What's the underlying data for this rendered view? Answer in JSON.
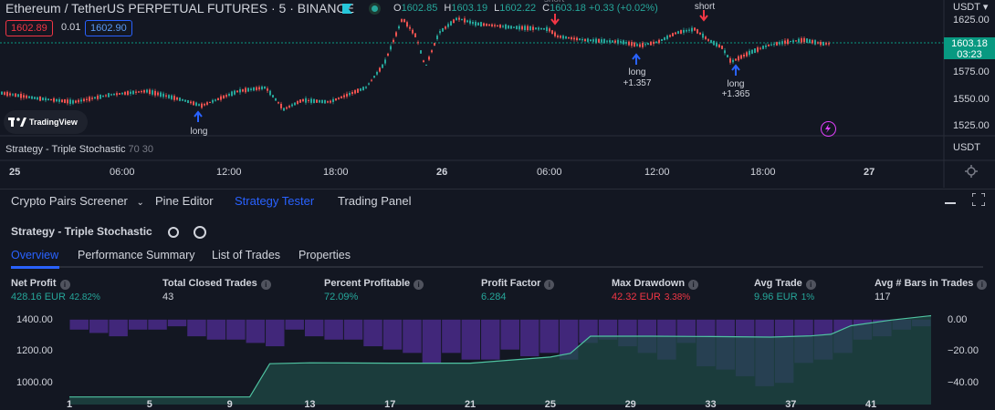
{
  "header": {
    "title": "Ethereum / TetherUS PERPETUAL FUTURES · 5 · BINANCE",
    "ohlc": [
      {
        "k": "O",
        "v": "1602.85"
      },
      {
        "k": "H",
        "v": "1603.19"
      },
      {
        "k": "L",
        "v": "1602.22"
      },
      {
        "k": "C",
        "v": "1603.18 +0.33 (+0.02%)"
      }
    ],
    "sell_price": "1602.89",
    "spread": "0.01",
    "buy_price": "1602.90",
    "currency": "USDT"
  },
  "price_axis": {
    "labels": [
      "1625.00",
      "1575.00",
      "1550.00",
      "1525.00"
    ],
    "current_price": "1603.18",
    "countdown": "03:23",
    "study_unit": "USDT"
  },
  "logo_text": "TradingView",
  "study": {
    "name": "Strategy - Triple Stochastic",
    "params": "70 30"
  },
  "time_axis": [
    {
      "label": "25",
      "bold": true
    },
    {
      "label": "06:00",
      "bold": false
    },
    {
      "label": "12:00",
      "bold": false
    },
    {
      "label": "18:00",
      "bold": false
    },
    {
      "label": "26",
      "bold": true
    },
    {
      "label": "06:00",
      "bold": false
    },
    {
      "label": "12:00",
      "bold": false
    },
    {
      "label": "18:00",
      "bold": false
    },
    {
      "label": "27",
      "bold": true
    }
  ],
  "signals": [
    {
      "label": "long",
      "pnl": ""
    },
    {
      "label": "short",
      "pnl": ""
    },
    {
      "label": "short",
      "pnl": ""
    },
    {
      "label": "long",
      "pnl": "+1.357"
    },
    {
      "label": "long",
      "pnl": "+1.365"
    }
  ],
  "panel_tabs": [
    "Crypto Pairs Screener",
    "Pine Editor",
    "Strategy Tester",
    "Trading Panel"
  ],
  "strategy": {
    "name": "Strategy - Triple Stochastic",
    "subtabs": [
      "Overview",
      "Performance Summary",
      "List of Trades",
      "Properties"
    ],
    "metrics": [
      {
        "title": "Net Profit",
        "value": "428.16 EUR",
        "pct": "42.82%",
        "color": "green"
      },
      {
        "title": "Total Closed Trades",
        "value": "43",
        "pct": "",
        "color": "white"
      },
      {
        "title": "Percent Profitable",
        "value": "72.09%",
        "pct": "",
        "color": "green"
      },
      {
        "title": "Profit Factor",
        "value": "6.284",
        "pct": "",
        "color": "green"
      },
      {
        "title": "Max Drawdown",
        "value": "42.32 EUR",
        "pct": "3.38%",
        "color": "red"
      },
      {
        "title": "Avg Trade",
        "value": "9.96 EUR",
        "pct": "1%",
        "color": "green"
      },
      {
        "title": "Avg # Bars in Trades",
        "value": "117",
        "pct": "",
        "color": "white"
      }
    ]
  },
  "chart_data": {
    "type": "area",
    "left_axis": {
      "ticks": [
        "1400.00",
        "1200.00",
        "1000.00"
      ],
      "ylim": [
        960,
        1440
      ]
    },
    "right_axis": {
      "ticks": [
        "0.00",
        "−20.00",
        "−40.00"
      ],
      "ylim": [
        -45,
        1
      ]
    },
    "x_ticks": [
      "1",
      "5",
      "9",
      "13",
      "17",
      "21",
      "25",
      "29",
      "33",
      "37",
      "41"
    ],
    "equity": [
      {
        "x": 1,
        "y": 1000
      },
      {
        "x": 5,
        "y": 1000
      },
      {
        "x": 10,
        "y": 1000
      },
      {
        "x": 11,
        "y": 1175
      },
      {
        "x": 13,
        "y": 1180
      },
      {
        "x": 17,
        "y": 1178
      },
      {
        "x": 21,
        "y": 1178
      },
      {
        "x": 25,
        "y": 1210
      },
      {
        "x": 26,
        "y": 1230
      },
      {
        "x": 27,
        "y": 1320
      },
      {
        "x": 30,
        "y": 1320
      },
      {
        "x": 33,
        "y": 1318
      },
      {
        "x": 36,
        "y": 1315
      },
      {
        "x": 38,
        "y": 1322
      },
      {
        "x": 39,
        "y": 1330
      },
      {
        "x": 40,
        "y": 1375
      },
      {
        "x": 42,
        "y": 1405
      },
      {
        "x": 44,
        "y": 1428
      }
    ],
    "drawdown": [
      -6,
      -8,
      -10,
      -6,
      -6,
      -4,
      -10,
      -12,
      -12,
      -14,
      -16,
      -6,
      -10,
      -12,
      -12,
      -16,
      -18,
      -20,
      -26,
      -20,
      -24,
      -24,
      -18,
      -22,
      -20,
      -24,
      -14,
      -12,
      -16,
      -20,
      -24,
      -14,
      -28,
      -30,
      -34,
      -40,
      -38,
      -26,
      -24,
      -20,
      -12,
      -10,
      -6,
      -4
    ]
  }
}
